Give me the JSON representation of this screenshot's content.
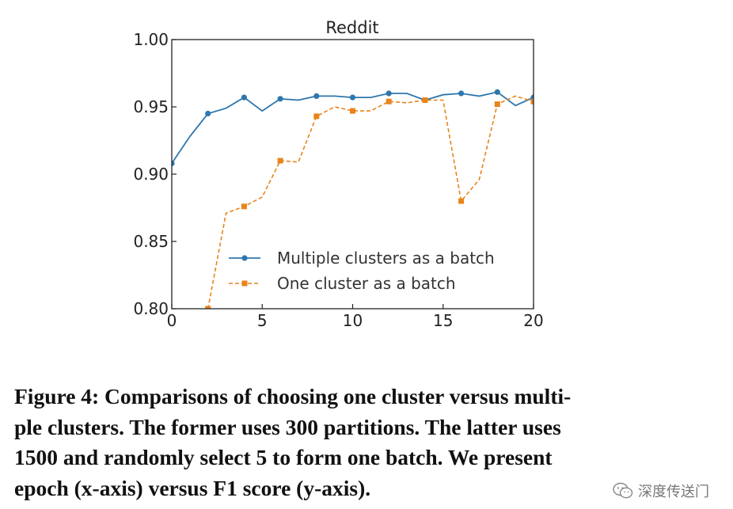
{
  "chart_data": {
    "type": "line",
    "title": "Reddit",
    "xlabel": "",
    "ylabel": "",
    "xlim": [
      0,
      20
    ],
    "ylim": [
      0.8,
      1.0
    ],
    "xticks": [
      0,
      5,
      10,
      15,
      20
    ],
    "yticks": [
      0.8,
      0.85,
      0.9,
      0.95,
      1.0
    ],
    "xtick_labels": [
      "0",
      "5",
      "10",
      "15",
      "20"
    ],
    "ytick_labels": [
      "0.80",
      "0.85",
      "0.90",
      "0.95",
      "1.00"
    ],
    "grid": false,
    "legend_position": "lower-center",
    "series": [
      {
        "name": "Multiple clusters as a batch",
        "color": "#2e77ae",
        "style": "solid",
        "marker": "circle",
        "points": [
          [
            0,
            0.908
          ],
          [
            1,
            0.928
          ],
          [
            2,
            0.945
          ],
          [
            3,
            0.949
          ],
          [
            4,
            0.957
          ],
          [
            5,
            0.947
          ],
          [
            6,
            0.956
          ],
          [
            7,
            0.955
          ],
          [
            8,
            0.958
          ],
          [
            9,
            0.958
          ],
          [
            10,
            0.957
          ],
          [
            11,
            0.957
          ],
          [
            12,
            0.96
          ],
          [
            13,
            0.96
          ],
          [
            14,
            0.955
          ],
          [
            15,
            0.959
          ],
          [
            16,
            0.96
          ],
          [
            17,
            0.958
          ],
          [
            18,
            0.961
          ],
          [
            19,
            0.951
          ],
          [
            20,
            0.957
          ]
        ],
        "marker_x": [
          0,
          2,
          4,
          6,
          8,
          10,
          12,
          14,
          16,
          18,
          20
        ]
      },
      {
        "name": "One cluster as a batch",
        "color": "#e8841a",
        "style": "dashed",
        "marker": "square",
        "points": [
          [
            2,
            0.8
          ],
          [
            3,
            0.871
          ],
          [
            4,
            0.876
          ],
          [
            5,
            0.883
          ],
          [
            6,
            0.91
          ],
          [
            7,
            0.909
          ],
          [
            8,
            0.943
          ],
          [
            9,
            0.95
          ],
          [
            10,
            0.947
          ],
          [
            11,
            0.947
          ],
          [
            12,
            0.954
          ],
          [
            13,
            0.953
          ],
          [
            14,
            0.955
          ],
          [
            15,
            0.955
          ],
          [
            16,
            0.88
          ],
          [
            17,
            0.896
          ],
          [
            18,
            0.952
          ],
          [
            19,
            0.958
          ],
          [
            20,
            0.954
          ]
        ],
        "marker_x": [
          2,
          4,
          6,
          8,
          10,
          12,
          14,
          16,
          18,
          20
        ]
      }
    ]
  },
  "caption": "Figure 4: Comparisons of choosing one cluster versus multi-\nple clusters. The former uses 300 partitions. The latter uses\n1500 and randomly select 5 to form one batch. We present\nepoch (x-axis) versus F1 score (y-axis).",
  "watermark": {
    "text": "深度传送门",
    "icon": "wechat-icon"
  }
}
